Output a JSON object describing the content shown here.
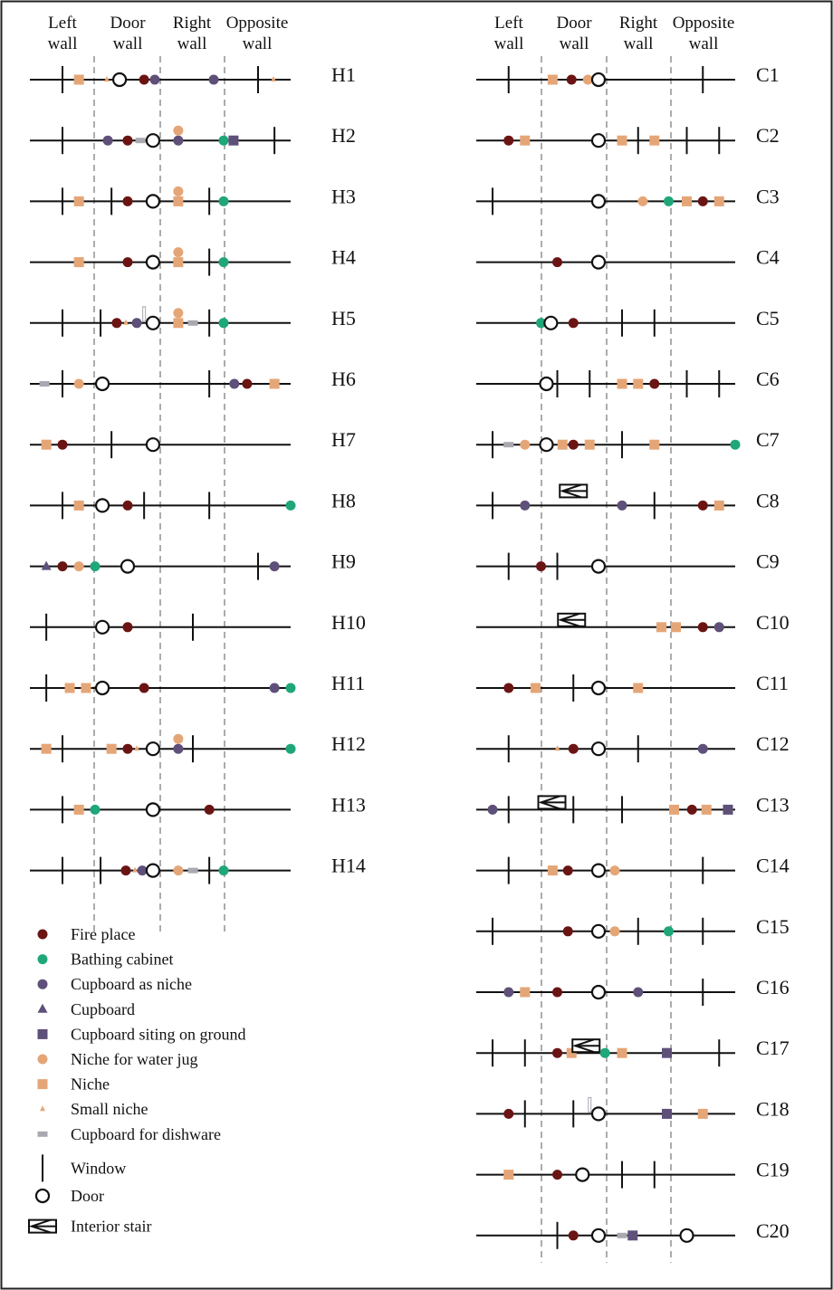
{
  "headers": [
    "Left\nwall",
    "Door\nwall",
    "Right\nwall",
    "Opposite\nwall"
  ],
  "colors": {
    "fireplace": "#6b1414",
    "bathing": "#1fa67a",
    "cupboard_niche": "#5e5078",
    "cupboard": "#5e5078",
    "cupboard_ground": "#5e5078",
    "niche_jug": "#e5a677",
    "niche": "#e5a677",
    "small_niche": "#e5a677",
    "dishware": "#a9a9b2",
    "line": "#111111",
    "divider": "#888888"
  },
  "legend": [
    {
      "type": "fireplace",
      "label": "Fire place"
    },
    {
      "type": "bathing",
      "label": "Bathing cabinet"
    },
    {
      "type": "cupboard_niche",
      "label": "Cupboard as niche"
    },
    {
      "type": "cupboard",
      "label": "Cupboard"
    },
    {
      "type": "cupboard_ground",
      "label": "Cupboard siting on ground"
    },
    {
      "type": "niche_jug",
      "label": "Niche for water jug"
    },
    {
      "type": "niche",
      "label": "Niche"
    },
    {
      "type": "small_niche",
      "label": "Small niche"
    },
    {
      "type": "dishware",
      "label": "Cupboard for dishware"
    },
    {
      "type": "window",
      "label": "Window"
    },
    {
      "type": "door",
      "label": "Door"
    },
    {
      "type": "stair",
      "label": "Interior stair"
    }
  ],
  "left_rows": [
    {
      "label": "H1",
      "items": [
        {
          "t": "window",
          "p": 0.125
        },
        {
          "t": "niche",
          "p": 0.188
        },
        {
          "t": "small_niche",
          "p": 0.295
        },
        {
          "t": "door",
          "p": 0.344
        },
        {
          "t": "fireplace",
          "p": 0.438
        },
        {
          "t": "cupboard_niche",
          "p": 0.479
        },
        {
          "t": "cupboard_niche",
          "p": 0.705
        },
        {
          "t": "window",
          "p": 0.875
        },
        {
          "t": "small_niche",
          "p": 0.934
        }
      ]
    },
    {
      "label": "H2",
      "items": [
        {
          "t": "window",
          "p": 0.125
        },
        {
          "t": "cupboard_niche",
          "p": 0.299
        },
        {
          "t": "fireplace",
          "p": 0.375
        },
        {
          "t": "dishware",
          "p": 0.424
        },
        {
          "t": "door",
          "p": 0.472
        },
        {
          "t": "niche_jug",
          "p": 0.569
        },
        {
          "t": "cupboard_niche",
          "p": 0.569
        },
        {
          "t": "bathing",
          "p": 0.743
        },
        {
          "t": "cupboard_ground",
          "p": 0.781
        },
        {
          "t": "window",
          "p": 0.938
        }
      ]
    },
    {
      "label": "H3",
      "items": [
        {
          "t": "window",
          "p": 0.125
        },
        {
          "t": "niche",
          "p": 0.188
        },
        {
          "t": "window",
          "p": 0.313
        },
        {
          "t": "fireplace",
          "p": 0.375
        },
        {
          "t": "door",
          "p": 0.472
        },
        {
          "t": "niche",
          "p": 0.569
        },
        {
          "t": "niche_jug",
          "p": 0.569
        },
        {
          "t": "window",
          "p": 0.688
        },
        {
          "t": "bathing",
          "p": 0.743
        }
      ]
    },
    {
      "label": "H4",
      "items": [
        {
          "t": "niche",
          "p": 0.188
        },
        {
          "t": "fireplace",
          "p": 0.375
        },
        {
          "t": "door",
          "p": 0.472
        },
        {
          "t": "niche",
          "p": 0.569
        },
        {
          "t": "niche_jug",
          "p": 0.569
        },
        {
          "t": "window",
          "p": 0.688
        },
        {
          "t": "bathing",
          "p": 0.743
        }
      ]
    },
    {
      "label": "H5",
      "items": [
        {
          "t": "window",
          "p": 0.125
        },
        {
          "t": "window",
          "p": 0.271
        },
        {
          "t": "fireplace",
          "p": 0.333
        },
        {
          "t": "small_niche",
          "p": 0.368
        },
        {
          "t": "cupboard_niche",
          "p": 0.41
        },
        {
          "t": "dishware_v",
          "p": 0.438
        },
        {
          "t": "door",
          "p": 0.472
        },
        {
          "t": "niche",
          "p": 0.569
        },
        {
          "t": "niche_jug",
          "p": 0.569
        },
        {
          "t": "dishware",
          "p": 0.625
        },
        {
          "t": "window",
          "p": 0.688
        },
        {
          "t": "bathing",
          "p": 0.743
        }
      ]
    },
    {
      "label": "H6",
      "items": [
        {
          "t": "dishware",
          "p": 0.056
        },
        {
          "t": "window",
          "p": 0.125
        },
        {
          "t": "niche_jug",
          "p": 0.188
        },
        {
          "t": "door",
          "p": 0.278
        },
        {
          "t": "window",
          "p": 0.688
        },
        {
          "t": "cupboard_niche",
          "p": 0.784
        },
        {
          "t": "fireplace",
          "p": 0.833
        },
        {
          "t": "niche",
          "p": 0.938
        }
      ]
    },
    {
      "label": "H7",
      "items": [
        {
          "t": "niche",
          "p": 0.063
        },
        {
          "t": "fireplace",
          "p": 0.125
        },
        {
          "t": "window",
          "p": 0.313
        },
        {
          "t": "door",
          "p": 0.472
        }
      ]
    },
    {
      "label": "H8",
      "items": [
        {
          "t": "window",
          "p": 0.125
        },
        {
          "t": "niche",
          "p": 0.188
        },
        {
          "t": "door",
          "p": 0.278
        },
        {
          "t": "fireplace",
          "p": 0.375
        },
        {
          "t": "window",
          "p": 0.438
        },
        {
          "t": "window",
          "p": 0.688
        },
        {
          "t": "bathing",
          "p": 1.0
        }
      ]
    },
    {
      "label": "H9",
      "items": [
        {
          "t": "cupboard",
          "p": 0.063
        },
        {
          "t": "fireplace",
          "p": 0.125
        },
        {
          "t": "niche_jug",
          "p": 0.188
        },
        {
          "t": "bathing",
          "p": 0.25
        },
        {
          "t": "door",
          "p": 0.375
        },
        {
          "t": "window",
          "p": 0.875
        },
        {
          "t": "cupboard_niche",
          "p": 0.938
        }
      ]
    },
    {
      "label": "H10",
      "items": [
        {
          "t": "window",
          "p": 0.063
        },
        {
          "t": "door",
          "p": 0.278
        },
        {
          "t": "fireplace",
          "p": 0.375
        },
        {
          "t": "window",
          "p": 0.625
        }
      ]
    },
    {
      "label": "H11",
      "items": [
        {
          "t": "window",
          "p": 0.063
        },
        {
          "t": "niche",
          "p": 0.153
        },
        {
          "t": "niche",
          "p": 0.215
        },
        {
          "t": "door",
          "p": 0.278
        },
        {
          "t": "fireplace",
          "p": 0.438
        },
        {
          "t": "cupboard_niche",
          "p": 0.938
        },
        {
          "t": "bathing",
          "p": 1.0
        }
      ]
    },
    {
      "label": "H12",
      "items": [
        {
          "t": "niche",
          "p": 0.063
        },
        {
          "t": "window",
          "p": 0.125
        },
        {
          "t": "niche",
          "p": 0.313
        },
        {
          "t": "fireplace",
          "p": 0.375
        },
        {
          "t": "small_niche",
          "p": 0.41
        },
        {
          "t": "door",
          "p": 0.472
        },
        {
          "t": "niche_jug",
          "p": 0.569
        },
        {
          "t": "cupboard_niche",
          "p": 0.569
        },
        {
          "t": "window",
          "p": 0.625
        },
        {
          "t": "bathing",
          "p": 1.0
        }
      ]
    },
    {
      "label": "H13",
      "items": [
        {
          "t": "window",
          "p": 0.125
        },
        {
          "t": "niche",
          "p": 0.188
        },
        {
          "t": "bathing",
          "p": 0.25
        },
        {
          "t": "door",
          "p": 0.472
        },
        {
          "t": "fireplace",
          "p": 0.688
        }
      ]
    },
    {
      "label": "H14",
      "items": [
        {
          "t": "window",
          "p": 0.125
        },
        {
          "t": "window",
          "p": 0.271
        },
        {
          "t": "fireplace",
          "p": 0.368
        },
        {
          "t": "small_niche",
          "p": 0.403
        },
        {
          "t": "cupboard_niche",
          "p": 0.431
        },
        {
          "t": "door",
          "p": 0.472
        },
        {
          "t": "niche_jug",
          "p": 0.569
        },
        {
          "t": "dishware",
          "p": 0.625
        },
        {
          "t": "window",
          "p": 0.688
        },
        {
          "t": "bathing",
          "p": 0.743
        }
      ]
    }
  ],
  "right_rows": [
    {
      "label": "C1",
      "items": [
        {
          "t": "window",
          "p": 0.125
        },
        {
          "t": "niche",
          "p": 0.295
        },
        {
          "t": "fireplace",
          "p": 0.368
        },
        {
          "t": "niche_jug",
          "p": 0.431
        },
        {
          "t": "door",
          "p": 0.472
        },
        {
          "t": "window",
          "p": 0.875
        }
      ]
    },
    {
      "label": "C2",
      "items": [
        {
          "t": "fireplace",
          "p": 0.125
        },
        {
          "t": "niche",
          "p": 0.188
        },
        {
          "t": "door",
          "p": 0.472
        },
        {
          "t": "niche",
          "p": 0.563
        },
        {
          "t": "window",
          "p": 0.625
        },
        {
          "t": "niche",
          "p": 0.688
        },
        {
          "t": "window",
          "p": 0.813
        },
        {
          "t": "window",
          "p": 0.938
        }
      ]
    },
    {
      "label": "C3",
      "items": [
        {
          "t": "window",
          "p": 0.063
        },
        {
          "t": "door",
          "p": 0.472
        },
        {
          "t": "niche_jug",
          "p": 0.643
        },
        {
          "t": "bathing",
          "p": 0.743
        },
        {
          "t": "niche",
          "p": 0.813
        },
        {
          "t": "fireplace",
          "p": 0.875
        },
        {
          "t": "niche",
          "p": 0.938
        }
      ]
    },
    {
      "label": "C4",
      "items": [
        {
          "t": "fireplace",
          "p": 0.313
        },
        {
          "t": "door",
          "p": 0.472
        }
      ]
    },
    {
      "label": "C5",
      "items": [
        {
          "t": "bathing",
          "p": 0.25
        },
        {
          "t": "door",
          "p": 0.288
        },
        {
          "t": "fireplace",
          "p": 0.375
        },
        {
          "t": "window",
          "p": 0.563
        },
        {
          "t": "window",
          "p": 0.688
        }
      ]
    },
    {
      "label": "C6",
      "items": [
        {
          "t": "door",
          "p": 0.271
        },
        {
          "t": "window",
          "p": 0.313
        },
        {
          "t": "window",
          "p": 0.438
        },
        {
          "t": "niche",
          "p": 0.563
        },
        {
          "t": "niche",
          "p": 0.625
        },
        {
          "t": "fireplace",
          "p": 0.688
        },
        {
          "t": "window",
          "p": 0.813
        },
        {
          "t": "window",
          "p": 0.938
        }
      ]
    },
    {
      "label": "C7",
      "items": [
        {
          "t": "window",
          "p": 0.063
        },
        {
          "t": "dishware",
          "p": 0.125
        },
        {
          "t": "niche_jug",
          "p": 0.188
        },
        {
          "t": "door",
          "p": 0.271
        },
        {
          "t": "niche",
          "p": 0.333
        },
        {
          "t": "fireplace",
          "p": 0.375
        },
        {
          "t": "niche",
          "p": 0.438
        },
        {
          "t": "window",
          "p": 0.563
        },
        {
          "t": "niche",
          "p": 0.688
        },
        {
          "t": "bathing",
          "p": 1.0
        }
      ]
    },
    {
      "label": "C8",
      "items": [
        {
          "t": "window",
          "p": 0.063
        },
        {
          "t": "cupboard_niche",
          "p": 0.188
        },
        {
          "t": "stair",
          "p": 0.375,
          "dy": -16
        },
        {
          "t": "cupboard_niche",
          "p": 0.563
        },
        {
          "t": "window",
          "p": 0.688
        },
        {
          "t": "fireplace",
          "p": 0.875
        },
        {
          "t": "niche",
          "p": 0.938
        }
      ]
    },
    {
      "label": "C9",
      "items": [
        {
          "t": "window",
          "p": 0.125
        },
        {
          "t": "fireplace",
          "p": 0.25
        },
        {
          "t": "window",
          "p": 0.313
        },
        {
          "t": "door",
          "p": 0.472
        }
      ]
    },
    {
      "label": "C10",
      "items": [
        {
          "t": "stair",
          "p": 0.368,
          "dy": -8
        },
        {
          "t": "niche",
          "p": 0.715
        },
        {
          "t": "niche",
          "p": 0.771
        },
        {
          "t": "fireplace",
          "p": 0.875
        },
        {
          "t": "cupboard_niche",
          "p": 0.938
        }
      ]
    },
    {
      "label": "C11",
      "items": [
        {
          "t": "fireplace",
          "p": 0.125
        },
        {
          "t": "niche",
          "p": 0.229
        },
        {
          "t": "window",
          "p": 0.375
        },
        {
          "t": "door",
          "p": 0.472
        },
        {
          "t": "niche",
          "p": 0.625
        }
      ]
    },
    {
      "label": "C12",
      "items": [
        {
          "t": "window",
          "p": 0.125
        },
        {
          "t": "small_niche",
          "p": 0.313
        },
        {
          "t": "fireplace",
          "p": 0.375
        },
        {
          "t": "door",
          "p": 0.472
        },
        {
          "t": "window",
          "p": 0.625
        },
        {
          "t": "cupboard_niche",
          "p": 0.875
        }
      ]
    },
    {
      "label": "C13",
      "items": [
        {
          "t": "cupboard_niche",
          "p": 0.063
        },
        {
          "t": "window",
          "p": 0.125
        },
        {
          "t": "stair",
          "p": 0.292,
          "dy": -8
        },
        {
          "t": "window",
          "p": 0.375
        },
        {
          "t": "window",
          "p": 0.563
        },
        {
          "t": "niche",
          "p": 0.764
        },
        {
          "t": "fireplace",
          "p": 0.833
        },
        {
          "t": "niche",
          "p": 0.889
        },
        {
          "t": "cupboard_ground",
          "p": 0.972
        }
      ]
    },
    {
      "label": "C14",
      "items": [
        {
          "t": "window",
          "p": 0.125
        },
        {
          "t": "niche",
          "p": 0.295
        },
        {
          "t": "fireplace",
          "p": 0.354
        },
        {
          "t": "door",
          "p": 0.472
        },
        {
          "t": "niche_jug",
          "p": 0.535
        },
        {
          "t": "window",
          "p": 0.875
        }
      ]
    },
    {
      "label": "C15",
      "items": [
        {
          "t": "window",
          "p": 0.063
        },
        {
          "t": "fireplace",
          "p": 0.354
        },
        {
          "t": "door",
          "p": 0.472
        },
        {
          "t": "niche_jug",
          "p": 0.535
        },
        {
          "t": "window",
          "p": 0.625
        },
        {
          "t": "bathing",
          "p": 0.743
        },
        {
          "t": "window",
          "p": 0.875
        }
      ]
    },
    {
      "label": "C16",
      "items": [
        {
          "t": "cupboard_niche",
          "p": 0.125
        },
        {
          "t": "niche",
          "p": 0.188
        },
        {
          "t": "fireplace",
          "p": 0.313
        },
        {
          "t": "door",
          "p": 0.472
        },
        {
          "t": "cupboard_niche",
          "p": 0.625
        },
        {
          "t": "window",
          "p": 0.875
        }
      ]
    },
    {
      "label": "C17",
      "items": [
        {
          "t": "window",
          "p": 0.063
        },
        {
          "t": "window",
          "p": 0.188
        },
        {
          "t": "fireplace",
          "p": 0.313
        },
        {
          "t": "niche",
          "p": 0.368
        },
        {
          "t": "stair",
          "p": 0.424,
          "dy": -8
        },
        {
          "t": "bathing",
          "p": 0.497
        },
        {
          "t": "niche",
          "p": 0.563
        },
        {
          "t": "cupboard_ground",
          "p": 0.736
        },
        {
          "t": "window",
          "p": 0.938
        }
      ]
    },
    {
      "label": "C18",
      "items": [
        {
          "t": "fireplace",
          "p": 0.125
        },
        {
          "t": "window",
          "p": 0.188
        },
        {
          "t": "window",
          "p": 0.375
        },
        {
          "t": "dishware_v",
          "p": 0.438
        },
        {
          "t": "door",
          "p": 0.472
        },
        {
          "t": "cupboard_ground",
          "p": 0.736
        },
        {
          "t": "niche",
          "p": 0.875
        }
      ]
    },
    {
      "label": "C19",
      "items": [
        {
          "t": "niche",
          "p": 0.125
        },
        {
          "t": "fireplace",
          "p": 0.313
        },
        {
          "t": "door",
          "p": 0.41
        },
        {
          "t": "window",
          "p": 0.563
        },
        {
          "t": "window",
          "p": 0.688
        }
      ]
    },
    {
      "label": "C20",
      "items": [
        {
          "t": "window",
          "p": 0.313
        },
        {
          "t": "fireplace",
          "p": 0.375
        },
        {
          "t": "door",
          "p": 0.472
        },
        {
          "t": "dishware",
          "p": 0.563
        },
        {
          "t": "cupboard_ground",
          "p": 0.604
        },
        {
          "t": "door",
          "p": 0.813
        }
      ]
    }
  ]
}
